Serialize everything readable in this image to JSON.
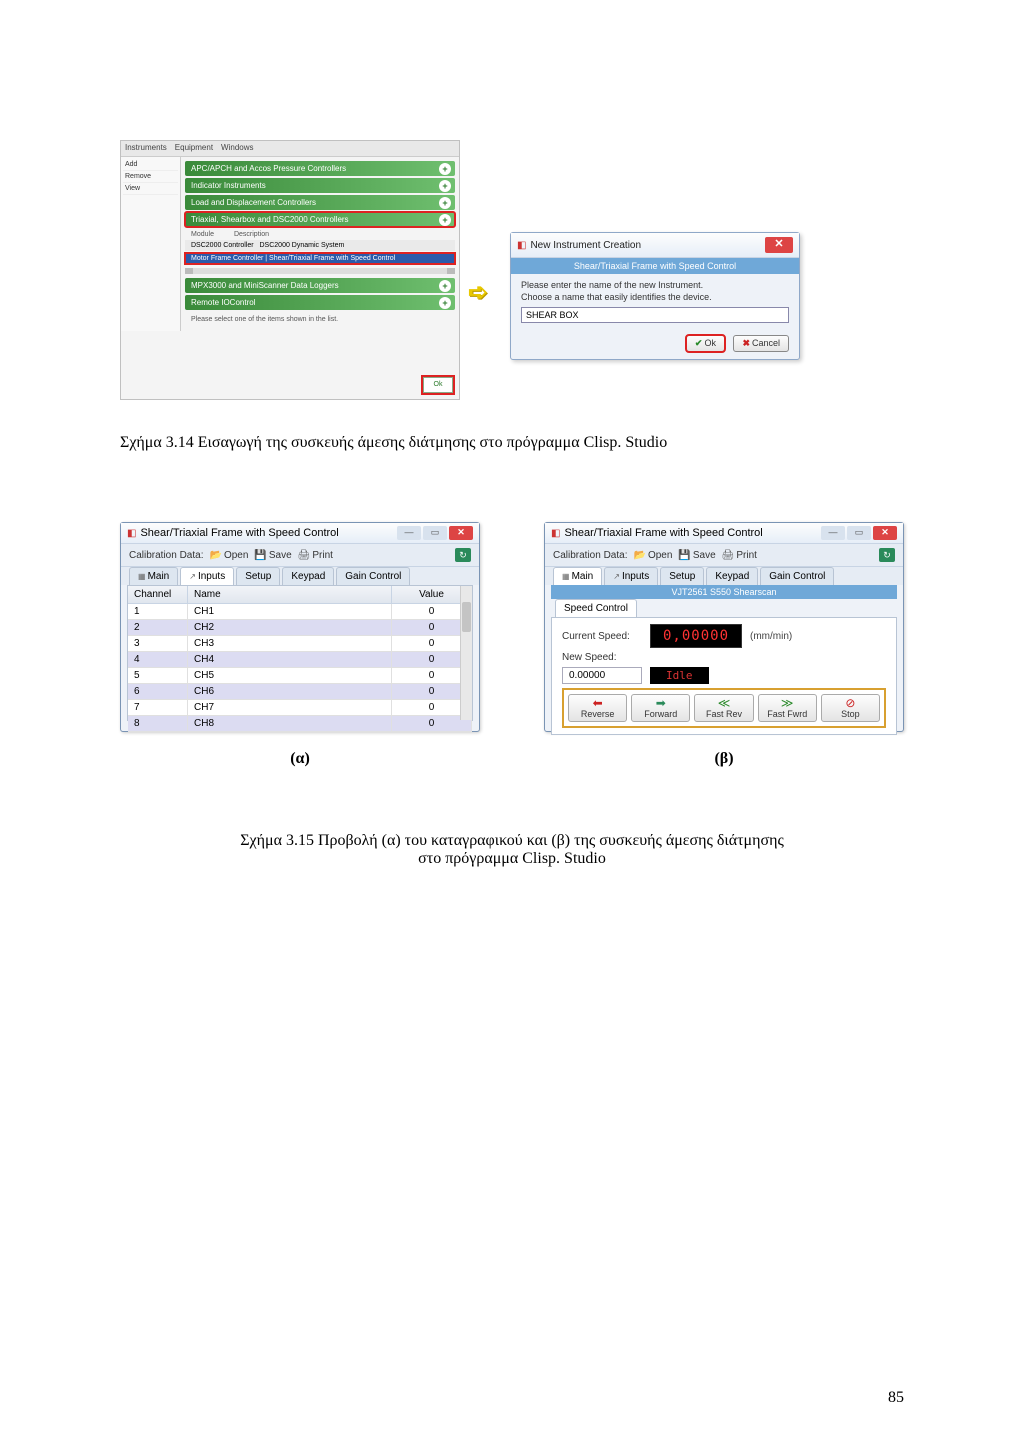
{
  "fig314": {
    "panel": {
      "toolbar": {
        "instruments": "Instruments",
        "equipment": "Equipment",
        "windows": "Windows"
      },
      "side": {
        "add": "Add",
        "remove": "Remove",
        "view": "View"
      },
      "rows": {
        "r1": "APC/APCH and Accos Pressure Controllers",
        "r2": "Indicator Instruments",
        "r3": "Load and Displacement Controllers",
        "r4": "Triaxial, Shearbox and DSC2000 Controllers",
        "subhead_module": "Module",
        "subhead_desc": "Description",
        "sub1_mod": "DSC2000 Controller",
        "sub1_desc": "DSC2000 Dynamic System",
        "sub2": "Motor Frame Controller   |  Shear/Triaxial Frame with Speed Control",
        "r5": "MPX3000 and MiniScanner Data Loggers",
        "r6": "Remote IOControl"
      },
      "note": "Please select one of the items shown in the list.",
      "ok": "Ok"
    },
    "dialog": {
      "title": "New Instrument Creation",
      "subtitle": "Shear/Triaxial Frame with Speed Control",
      "line1": "Please enter the name of the new Instrument.",
      "line2": "Choose a name that easily identifies the device.",
      "input": "SHEAR BOX",
      "ok": "Ok",
      "cancel": "Cancel"
    },
    "caption": "Σχήμα  3.14 Εισαγωγή της συσκευής άμεσης διάτμησης στο πρόγραμμα Clisp. Studio"
  },
  "fig315": {
    "common": {
      "title": "Shear/Triaxial Frame with Speed Control",
      "cal": "Calibration Data:",
      "open": "Open",
      "save": "Save",
      "print": "Print",
      "tab_main": "Main",
      "tab_inputs": "Inputs",
      "tab_setup": "Setup",
      "tab_keypad": "Keypad",
      "tab_gain": "Gain Control"
    },
    "alpha": {
      "head_channel": "Channel",
      "head_name": "Name",
      "head_value": "Value",
      "rows": [
        {
          "ch": "1",
          "name": "CH1",
          "val": "0"
        },
        {
          "ch": "2",
          "name": "CH2",
          "val": "0"
        },
        {
          "ch": "3",
          "name": "CH3",
          "val": "0"
        },
        {
          "ch": "4",
          "name": "CH4",
          "val": "0"
        },
        {
          "ch": "5",
          "name": "CH5",
          "val": "0"
        },
        {
          "ch": "6",
          "name": "CH6",
          "val": "0"
        },
        {
          "ch": "7",
          "name": "CH7",
          "val": "0"
        },
        {
          "ch": "8",
          "name": "CH8",
          "val": "0"
        }
      ],
      "label": "(α)"
    },
    "beta": {
      "banner": "VJT2561 S550 Shearscan",
      "tab": "Speed Control",
      "cur_label": "Current Speed:",
      "cur_val": "0,00000",
      "unit": "(mm/min)",
      "new_label": "New Speed:",
      "new_val": "0.00000",
      "idle": "Idle",
      "btn_rev": "Reverse",
      "btn_fwd": "Forward",
      "btn_fr": "Fast Rev",
      "btn_ff": "Fast Fwrd",
      "btn_stop": "Stop",
      "label": "(β)"
    },
    "caption_l1": "Σχήμα  3.15 Προβολή (α) του καταγραφικού και (β) της συσκευής άμεσης διάτμησης",
    "caption_l2": "στο πρόγραμμα Clisp. Studio"
  },
  "page_number": "85",
  "colors": {
    "highlight_red": "#d22222",
    "green_grad_a": "#3a8a3a",
    "green_grad_b": "#6fbf6f",
    "blue_header": "#6fa8d8",
    "arrow_yellow": "#e8c800"
  }
}
